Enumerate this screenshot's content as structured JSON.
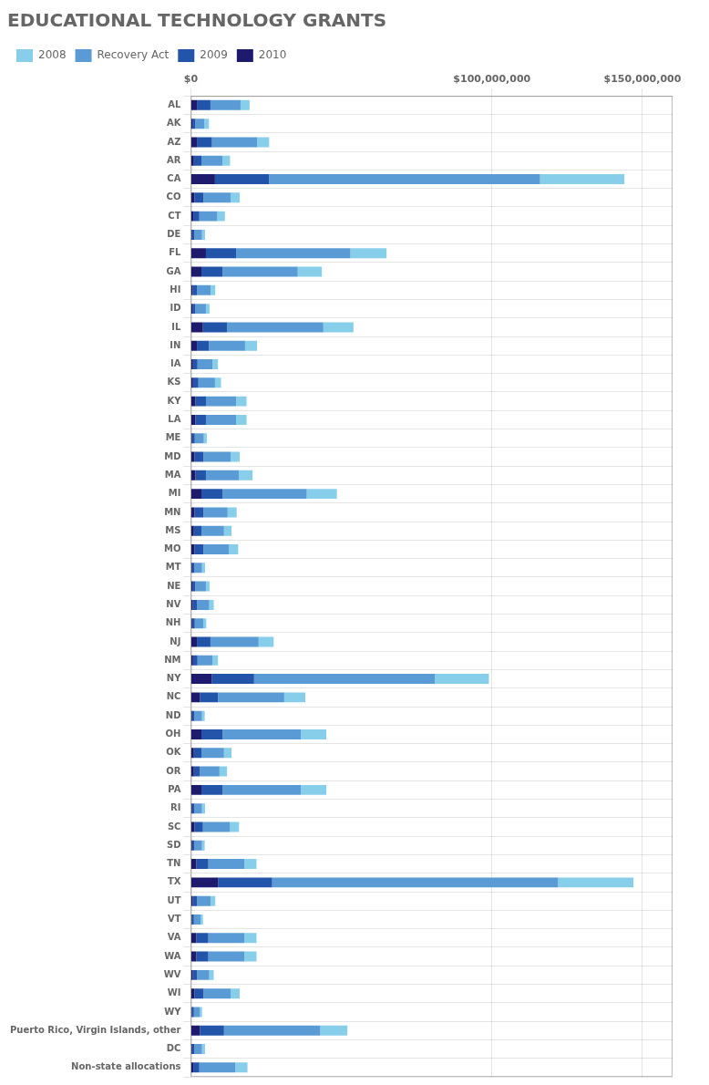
{
  "chart_data": {
    "type": "bar",
    "orientation": "horizontal",
    "stacked": true,
    "title": "EDUCATIONAL TECHNOLOGY GRANTS",
    "categories": [
      "AL",
      "AK",
      "AZ",
      "AR",
      "CA",
      "CO",
      "CT",
      "DE",
      "FL",
      "GA",
      "HI",
      "ID",
      "IL",
      "IN",
      "IA",
      "KS",
      "KY",
      "LA",
      "ME",
      "MD",
      "MA",
      "MI",
      "MN",
      "MS",
      "MO",
      "MT",
      "NE",
      "NV",
      "NH",
      "NJ",
      "NM",
      "NY",
      "NC",
      "ND",
      "OH",
      "OK",
      "OR",
      "PA",
      "RI",
      "SC",
      "SD",
      "TN",
      "TX",
      "UT",
      "VT",
      "VA",
      "WA",
      "WV",
      "WI",
      "WY",
      "Puerto Rico, Virgin Islands, other",
      "DC",
      "Non-state allocations"
    ],
    "series": [
      {
        "name": "2010",
        "color": "#1E1A6E",
        "values": [
          2000000,
          500000,
          2000000,
          1000000,
          8000000,
          1200000,
          800000,
          400000,
          5000000,
          3500000,
          600000,
          500000,
          4000000,
          2000000,
          700000,
          700000,
          1500000,
          1500000,
          400000,
          1200000,
          1500000,
          3500000,
          1200000,
          1000000,
          1200000,
          400000,
          500000,
          600000,
          400000,
          2000000,
          700000,
          7000000,
          3000000,
          400000,
          3500000,
          1000000,
          1000000,
          3500000,
          400000,
          1200000,
          400000,
          1800000,
          9000000,
          600000,
          300000,
          1800000,
          1800000,
          600000,
          1200000,
          300000,
          3000000,
          400000,
          800000
        ]
      },
      {
        "name": "2009",
        "color": "#2255AA",
        "values": [
          4500000,
          1000000,
          5000000,
          2500000,
          18000000,
          3000000,
          2000000,
          800000,
          10000000,
          7000000,
          1500000,
          1000000,
          8000000,
          4000000,
          1500000,
          1800000,
          3500000,
          3500000,
          900000,
          3000000,
          3500000,
          7000000,
          3000000,
          2500000,
          3000000,
          800000,
          1000000,
          1500000,
          900000,
          4500000,
          1500000,
          14000000,
          6000000,
          800000,
          7000000,
          2500000,
          2000000,
          7000000,
          800000,
          2800000,
          800000,
          4000000,
          18000000,
          1500000,
          700000,
          4000000,
          4000000,
          1500000,
          3000000,
          700000,
          8000000,
          800000,
          2000000
        ]
      },
      {
        "name": "Recovery Act",
        "color": "#5B9BD5",
        "values": [
          10000000,
          3000000,
          15000000,
          7000000,
          90000000,
          9000000,
          6000000,
          2500000,
          38000000,
          25000000,
          4500000,
          3500000,
          32000000,
          12000000,
          5000000,
          5500000,
          10000000,
          10000000,
          3000000,
          9000000,
          11000000,
          28000000,
          8000000,
          7500000,
          8500000,
          2500000,
          3500000,
          4000000,
          2800000,
          16000000,
          5000000,
          60000000,
          22000000,
          2500000,
          26000000,
          7500000,
          6500000,
          26000000,
          2500000,
          9000000,
          2500000,
          12000000,
          95000000,
          4500000,
          2200000,
          12000000,
          12000000,
          4000000,
          9000000,
          2000000,
          32000000,
          2500000,
          12000000
        ]
      },
      {
        "name": "2008",
        "color": "#87CEEB",
        "values": [
          3000000,
          1500000,
          4000000,
          2500000,
          28000000,
          3000000,
          2500000,
          1000000,
          12000000,
          8000000,
          1500000,
          1200000,
          10000000,
          4000000,
          1800000,
          2000000,
          3500000,
          3500000,
          1000000,
          3000000,
          4500000,
          10000000,
          3000000,
          2500000,
          3000000,
          1000000,
          1200000,
          1500000,
          1000000,
          5000000,
          1800000,
          18000000,
          7000000,
          900000,
          8500000,
          2500000,
          2500000,
          8500000,
          1000000,
          3000000,
          900000,
          4000000,
          25000000,
          1500000,
          800000,
          4000000,
          4000000,
          1500000,
          3000000,
          700000,
          9000000,
          1000000,
          4000000
        ]
      }
    ],
    "xlim": [
      0,
      160000000
    ],
    "xticks": [
      {
        "value": 0,
        "label": "$0"
      },
      {
        "value": 100000000,
        "label": "$100,000,000"
      },
      {
        "value": 150000000,
        "label": "$150,000,000"
      }
    ],
    "grid": true,
    "legend": "top"
  }
}
